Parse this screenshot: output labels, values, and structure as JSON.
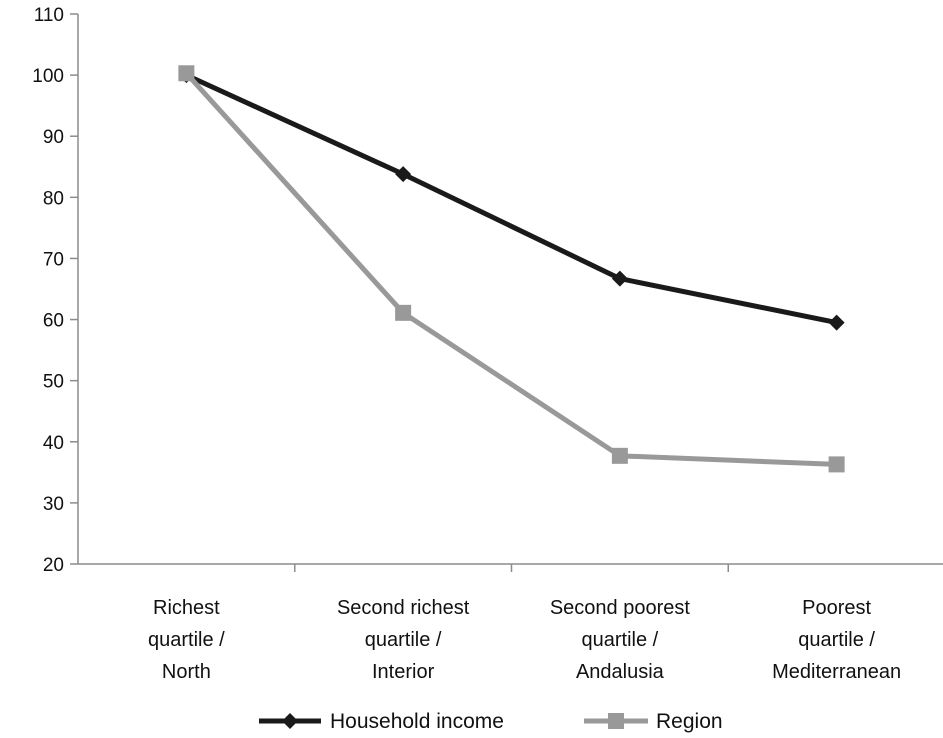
{
  "chart_data": {
    "type": "line",
    "categories": [
      [
        "Richest",
        "quartile /",
        "North"
      ],
      [
        "Second richest",
        "quartile /",
        "Interior"
      ],
      [
        "Second poorest",
        "quartile /",
        "Andalusia"
      ],
      [
        "Poorest",
        "quartile /",
        "Mediterranean"
      ]
    ],
    "series": [
      {
        "name": "Household income",
        "values": [
          100,
          83.8,
          66.7,
          59.5
        ],
        "color": "#1a1a1a",
        "marker": "diamond"
      },
      {
        "name": "Region",
        "values": [
          100.3,
          61.1,
          37.7,
          36.3
        ],
        "color": "#999999",
        "marker": "square"
      }
    ],
    "ylim": [
      20,
      110
    ],
    "yticks": [
      20,
      30,
      40,
      50,
      60,
      70,
      80,
      90,
      100,
      110
    ],
    "title": "",
    "xlabel": "",
    "ylabel": "",
    "grid": false,
    "legend_position": "bottom"
  }
}
